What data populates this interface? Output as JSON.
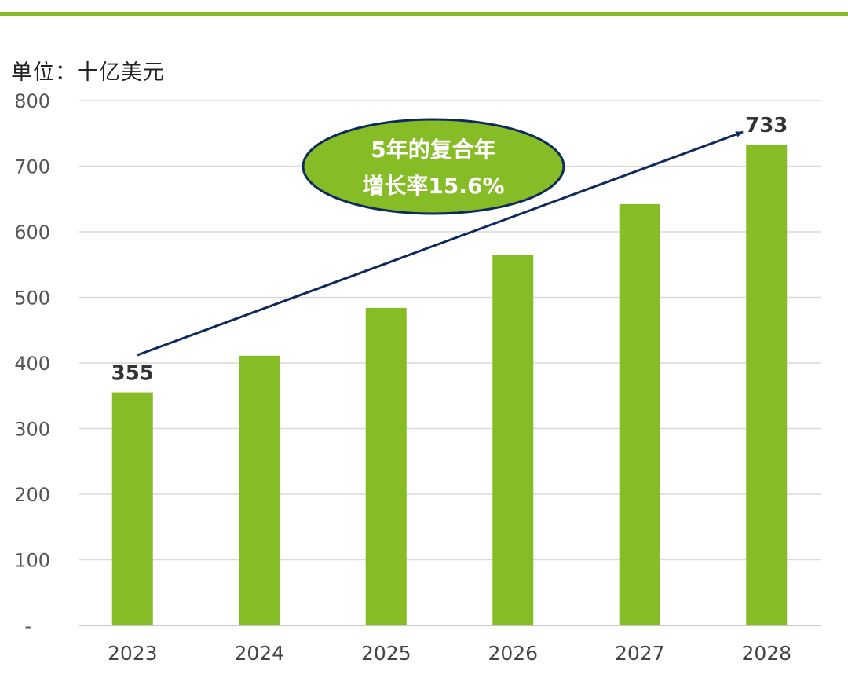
{
  "chart_data": {
    "type": "bar",
    "unit_label": "单位：十亿美元",
    "categories": [
      "2023",
      "2024",
      "2025",
      "2026",
      "2027",
      "2028"
    ],
    "values": [
      355,
      411,
      484,
      565,
      642,
      733
    ],
    "data_labels": [
      {
        "index": 0,
        "text": "355"
      },
      {
        "index": 5,
        "text": "733"
      }
    ],
    "ylim": [
      0,
      800
    ],
    "yticks": [
      {
        "value": 0,
        "label": "-"
      },
      {
        "value": 100,
        "label": "100"
      },
      {
        "value": 200,
        "label": "200"
      },
      {
        "value": 300,
        "label": "300"
      },
      {
        "value": 400,
        "label": "400"
      },
      {
        "value": 500,
        "label": "500"
      },
      {
        "value": 600,
        "label": "600"
      },
      {
        "value": 700,
        "label": "700"
      },
      {
        "value": 800,
        "label": "800"
      }
    ],
    "grid": true,
    "bar_color": "#86bc25",
    "annotation": {
      "lines": [
        "5年的复合年",
        "增长率15.6%"
      ],
      "fill": "#86bc25",
      "border": "#0f2a5c",
      "arrow_color": "#0f2a5c"
    }
  }
}
